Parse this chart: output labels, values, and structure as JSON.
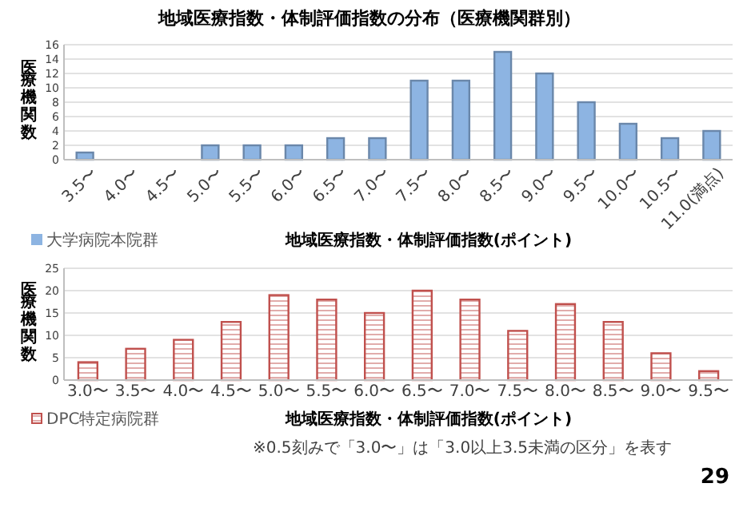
{
  "chart_data": [
    {
      "type": "bar",
      "title": "地域医療指数・体制評価指数の分布（医療機関群別）",
      "xlabel": "地域医療指数・体制評価指数(ポイント)",
      "ylabel": "医療機関数",
      "categories": [
        "3.5〜",
        "4.0〜",
        "4.5〜",
        "5.0〜",
        "5.5〜",
        "6.0〜",
        "6.5〜",
        "7.0〜",
        "7.5〜",
        "8.0〜",
        "8.5〜",
        "9.0〜",
        "9.5〜",
        "10.0〜",
        "10.5〜",
        "11.0(満点)"
      ],
      "series": [
        {
          "name": "大学病院本院群",
          "color": "#8db4e2",
          "values": [
            1,
            0,
            0,
            2,
            2,
            2,
            3,
            3,
            11,
            11,
            15,
            12,
            8,
            5,
            3,
            4
          ]
        }
      ],
      "ylim": [
        0,
        16
      ],
      "yticks": [
        0,
        2,
        4,
        6,
        8,
        10,
        12,
        14,
        16
      ],
      "grid": "y",
      "legend": "bottom left"
    },
    {
      "type": "bar",
      "xlabel": "地域医療指数・体制評価指数(ポイント)",
      "ylabel": "医療機関数",
      "categories": [
        "3.0〜",
        "3.5〜",
        "4.0〜",
        "4.5〜",
        "5.0〜",
        "5.5〜",
        "6.0〜",
        "6.5〜",
        "7.0〜",
        "7.5〜",
        "8.0〜",
        "8.5〜",
        "9.0〜",
        "9.5〜"
      ],
      "series": [
        {
          "name": "DPC特定病院群",
          "color": "#c0504d",
          "values": [
            4,
            7,
            9,
            13,
            19,
            18,
            15,
            20,
            18,
            11,
            17,
            13,
            6,
            2
          ]
        }
      ],
      "ylim": [
        0,
        25
      ],
      "yticks": [
        0,
        5,
        10,
        15,
        20,
        25
      ],
      "grid": "y",
      "legend": "bottom left",
      "annotations": [
        "※0.5刻みで「3.0〜」は「3.0以上3.5未満の区分」を表す",
        "29"
      ]
    }
  ]
}
